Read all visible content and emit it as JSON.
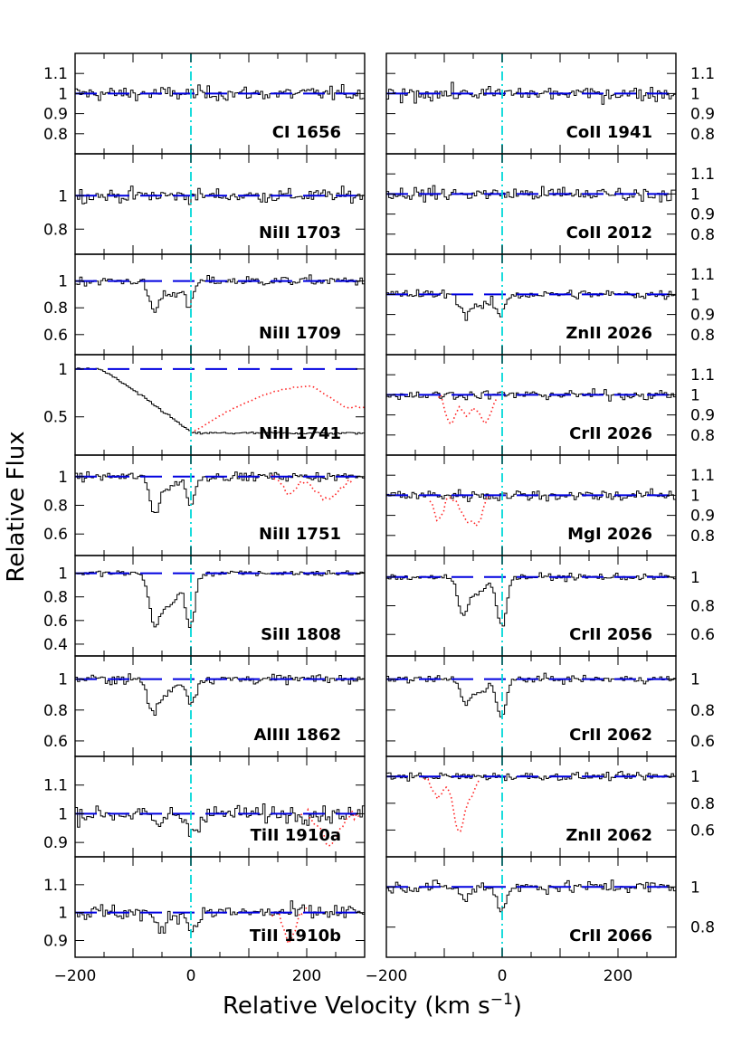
{
  "chart_data": {
    "type": "line",
    "ylabel": "Relative Flux",
    "xlabel": "Relative Velocity (km s",
    "xlabel_exponent": "−1",
    "xlabel_close": ")",
    "xlim": [
      -200,
      300
    ],
    "x_ticks": [
      "−200",
      "0",
      "200"
    ],
    "x_tick_values": [
      -200,
      0,
      200
    ],
    "colors": {
      "spectrum": "#000000",
      "continuum": "#0000e0",
      "zero_velocity": "#00d8d8",
      "blend": "#ff2020"
    },
    "columns": [
      {
        "tick_side": "left",
        "panels": [
          {
            "label": "CI 1656",
            "ylim": [
              0.7,
              1.2
            ],
            "y_ticks": [
              0.8,
              0.9,
              1,
              1.1
            ],
            "y_tick_labels": [
              "0.8",
              "0.9",
              "1",
              "1.1"
            ],
            "noise": 0.03,
            "absorption": [],
            "blends": []
          },
          {
            "label": "NiII 1703",
            "ylim": [
              0.65,
              1.25
            ],
            "y_ticks": [
              0.8,
              1
            ],
            "y_tick_labels": [
              "0.8",
              "1"
            ],
            "noise": 0.035,
            "absorption": [],
            "blends": []
          },
          {
            "label": "NiII 1709",
            "ylim": [
              0.45,
              1.2
            ],
            "y_ticks": [
              0.6,
              0.8,
              1
            ],
            "y_tick_labels": [
              "0.6",
              "0.8",
              "1"
            ],
            "noise": 0.03,
            "absorption": [
              {
                "v": -65,
                "depth": 0.22,
                "width": 9
              },
              {
                "v": -35,
                "depth": 0.1,
                "width": 12
              },
              {
                "v": -5,
                "depth": 0.2,
                "width": 7
              }
            ],
            "blends": []
          },
          {
            "label": "NiII 1741",
            "ylim": [
              0.1,
              1.15
            ],
            "y_ticks": [
              0.5,
              1
            ],
            "y_tick_labels": [
              "0.5",
              "1"
            ],
            "noise": 0.01,
            "broad": {
              "v_start": -160,
              "v_end": 0,
              "floor": 0.33
            },
            "absorption": [],
            "blends": [
              {
                "v_from": 0,
                "v_to": 300,
                "shape": "recovery",
                "start": 0.33,
                "peak_v": 210,
                "peak": 0.82,
                "end": 0.6
              }
            ]
          },
          {
            "label": "NiII 1751",
            "ylim": [
              0.45,
              1.15
            ],
            "y_ticks": [
              0.6,
              0.8,
              1
            ],
            "y_tick_labels": [
              "0.6",
              "0.8",
              "1"
            ],
            "noise": 0.025,
            "absorption": [
              {
                "v": -65,
                "depth": 0.25,
                "width": 8
              },
              {
                "v": -40,
                "depth": 0.08,
                "width": 12
              },
              {
                "v": -2,
                "depth": 0.2,
                "width": 7
              }
            ],
            "blends": [
              {
                "v_from": 140,
                "v_to": 280,
                "shape": "dips",
                "dips": [
                  {
                    "v": 170,
                    "depth": 0.12,
                    "width": 10
                  },
                  {
                    "v": 235,
                    "depth": 0.15,
                    "width": 22
                  }
                ]
              }
            ]
          },
          {
            "label": "SiII 1808",
            "ylim": [
              0.3,
              1.15
            ],
            "y_ticks": [
              0.4,
              0.6,
              0.8,
              1
            ],
            "y_tick_labels": [
              "0.4",
              "0.6",
              "0.8",
              "1"
            ],
            "noise": 0.02,
            "absorption": [
              {
                "v": -65,
                "depth": 0.4,
                "width": 9
              },
              {
                "v": -45,
                "depth": 0.2,
                "width": 12
              },
              {
                "v": -30,
                "depth": 0.15,
                "width": 10
              },
              {
                "v": -3,
                "depth": 0.45,
                "width": 8
              }
            ],
            "blends": []
          },
          {
            "label": "AlIII 1862",
            "ylim": [
              0.5,
              1.15
            ],
            "y_ticks": [
              0.6,
              0.8,
              1
            ],
            "y_tick_labels": [
              "0.6",
              "0.8",
              "1"
            ],
            "noise": 0.025,
            "absorption": [
              {
                "v": -68,
                "depth": 0.2,
                "width": 9
              },
              {
                "v": -45,
                "depth": 0.1,
                "width": 12
              },
              {
                "v": -2,
                "depth": 0.15,
                "width": 8
              }
            ],
            "blends": []
          },
          {
            "label": "TiII 1910a",
            "ylim": [
              0.85,
              1.2
            ],
            "y_ticks": [
              0.9,
              1,
              1.1
            ],
            "y_tick_labels": [
              "0.9",
              "1",
              "1.1"
            ],
            "noise": 0.025,
            "absorption": [
              {
                "v": -60,
                "depth": 0.04,
                "width": 10
              },
              {
                "v": 0,
                "depth": 0.06,
                "width": 10
              }
            ],
            "blends": [
              {
                "v_from": 190,
                "v_to": 290,
                "shape": "dips",
                "dips": [
                  {
                    "v": 240,
                    "depth": 0.1,
                    "width": 15
                  }
                ]
              }
            ]
          },
          {
            "label": "TiII 1910b",
            "ylim": [
              0.84,
              1.2
            ],
            "y_ticks": [
              0.9,
              1,
              1.1
            ],
            "y_tick_labels": [
              "0.9",
              "1",
              "1.1"
            ],
            "noise": 0.025,
            "absorption": [
              {
                "v": -55,
                "depth": 0.06,
                "width": 10
              },
              {
                "v": 0,
                "depth": 0.06,
                "width": 8
              }
            ],
            "blends": [
              {
                "v_from": 140,
                "v_to": 200,
                "shape": "dips",
                "dips": [
                  {
                    "v": 170,
                    "depth": 0.1,
                    "width": 10
                  }
                ]
              }
            ]
          }
        ]
      },
      {
        "tick_side": "right",
        "panels": [
          {
            "label": "CoII 1941",
            "ylim": [
              0.7,
              1.2
            ],
            "y_ticks": [
              0.8,
              0.9,
              1,
              1.1
            ],
            "y_tick_labels": [
              "0.8",
              "0.9",
              "1",
              "1.1"
            ],
            "noise": 0.03,
            "absorption": [],
            "blends": []
          },
          {
            "label": "CoII 2012",
            "ylim": [
              0.7,
              1.2
            ],
            "y_ticks": [
              0.8,
              0.9,
              1,
              1.1
            ],
            "y_tick_labels": [
              "0.8",
              "0.9",
              "1",
              "1.1"
            ],
            "noise": 0.03,
            "absorption": [],
            "blends": []
          },
          {
            "label": "ZnII 2026",
            "ylim": [
              0.7,
              1.2
            ],
            "y_ticks": [
              0.8,
              0.9,
              1,
              1.1
            ],
            "y_tick_labels": [
              "0.8",
              "0.9",
              "1",
              "1.1"
            ],
            "noise": 0.02,
            "absorption": [
              {
                "v": -65,
                "depth": 0.1,
                "width": 9
              },
              {
                "v": -35,
                "depth": 0.06,
                "width": 12
              },
              {
                "v": -5,
                "depth": 0.1,
                "width": 8
              }
            ],
            "blends": []
          },
          {
            "label": "CrII 2026",
            "ylim": [
              0.7,
              1.2
            ],
            "y_ticks": [
              0.8,
              0.9,
              1,
              1.1
            ],
            "y_tick_labels": [
              "0.8",
              "0.9",
              "1",
              "1.1"
            ],
            "noise": 0.02,
            "absorption": [],
            "blends": [
              {
                "v_from": -110,
                "v_to": -10,
                "shape": "dips",
                "dips": [
                  {
                    "v": -90,
                    "depth": 0.14,
                    "width": 8
                  },
                  {
                    "v": -60,
                    "depth": 0.1,
                    "width": 12
                  },
                  {
                    "v": -28,
                    "depth": 0.14,
                    "width": 9
                  }
                ]
              }
            ]
          },
          {
            "label": "MgI 2026",
            "ylim": [
              0.7,
              1.2
            ],
            "y_ticks": [
              0.8,
              0.9,
              1,
              1.1
            ],
            "y_tick_labels": [
              "0.8",
              "0.9",
              "1",
              "1.1"
            ],
            "noise": 0.025,
            "absorption": [],
            "blends": [
              {
                "v_from": -125,
                "v_to": -20,
                "shape": "dips",
                "dips": [
                  {
                    "v": -110,
                    "depth": 0.12,
                    "width": 8
                  },
                  {
                    "v": -60,
                    "depth": 0.13,
                    "width": 12
                  },
                  {
                    "v": -40,
                    "depth": 0.1,
                    "width": 8
                  }
                ]
              }
            ]
          },
          {
            "label": "CrII 2056",
            "ylim": [
              0.45,
              1.15
            ],
            "y_ticks": [
              0.6,
              0.8,
              1
            ],
            "y_tick_labels": [
              "0.6",
              "0.8",
              "1"
            ],
            "noise": 0.02,
            "absorption": [
              {
                "v": -70,
                "depth": 0.25,
                "width": 9
              },
              {
                "v": -45,
                "depth": 0.12,
                "width": 12
              },
              {
                "v": -3,
                "depth": 0.35,
                "width": 8
              }
            ],
            "blends": []
          },
          {
            "label": "CrII 2062",
            "ylim": [
              0.5,
              1.15
            ],
            "y_ticks": [
              0.6,
              0.8,
              1
            ],
            "y_tick_labels": [
              "0.6",
              "0.8",
              "1"
            ],
            "noise": 0.02,
            "absorption": [
              {
                "v": -65,
                "depth": 0.15,
                "width": 9
              },
              {
                "v": -40,
                "depth": 0.08,
                "width": 12
              },
              {
                "v": -3,
                "depth": 0.25,
                "width": 8
              }
            ],
            "blends": []
          },
          {
            "label": "ZnII 2062",
            "ylim": [
              0.4,
              1.15
            ],
            "y_ticks": [
              0.6,
              0.8,
              1
            ],
            "y_tick_labels": [
              "0.6",
              "0.8",
              "1"
            ],
            "noise": 0.025,
            "absorption": [],
            "blends": [
              {
                "v_from": -140,
                "v_to": -40,
                "shape": "dips",
                "dips": [
                  {
                    "v": -110,
                    "depth": 0.15,
                    "width": 10
                  },
                  {
                    "v": -75,
                    "depth": 0.4,
                    "width": 9
                  },
                  {
                    "v": -55,
                    "depth": 0.12,
                    "width": 10
                  }
                ]
              }
            ]
          },
          {
            "label": "CrII 2066",
            "ylim": [
              0.65,
              1.15
            ],
            "y_ticks": [
              0.8,
              1
            ],
            "y_tick_labels": [
              "0.8",
              "1"
            ],
            "noise": 0.025,
            "absorption": [
              {
                "v": -65,
                "depth": 0.06,
                "width": 9
              },
              {
                "v": -3,
                "depth": 0.12,
                "width": 7
              }
            ],
            "blends": []
          }
        ]
      }
    ]
  }
}
